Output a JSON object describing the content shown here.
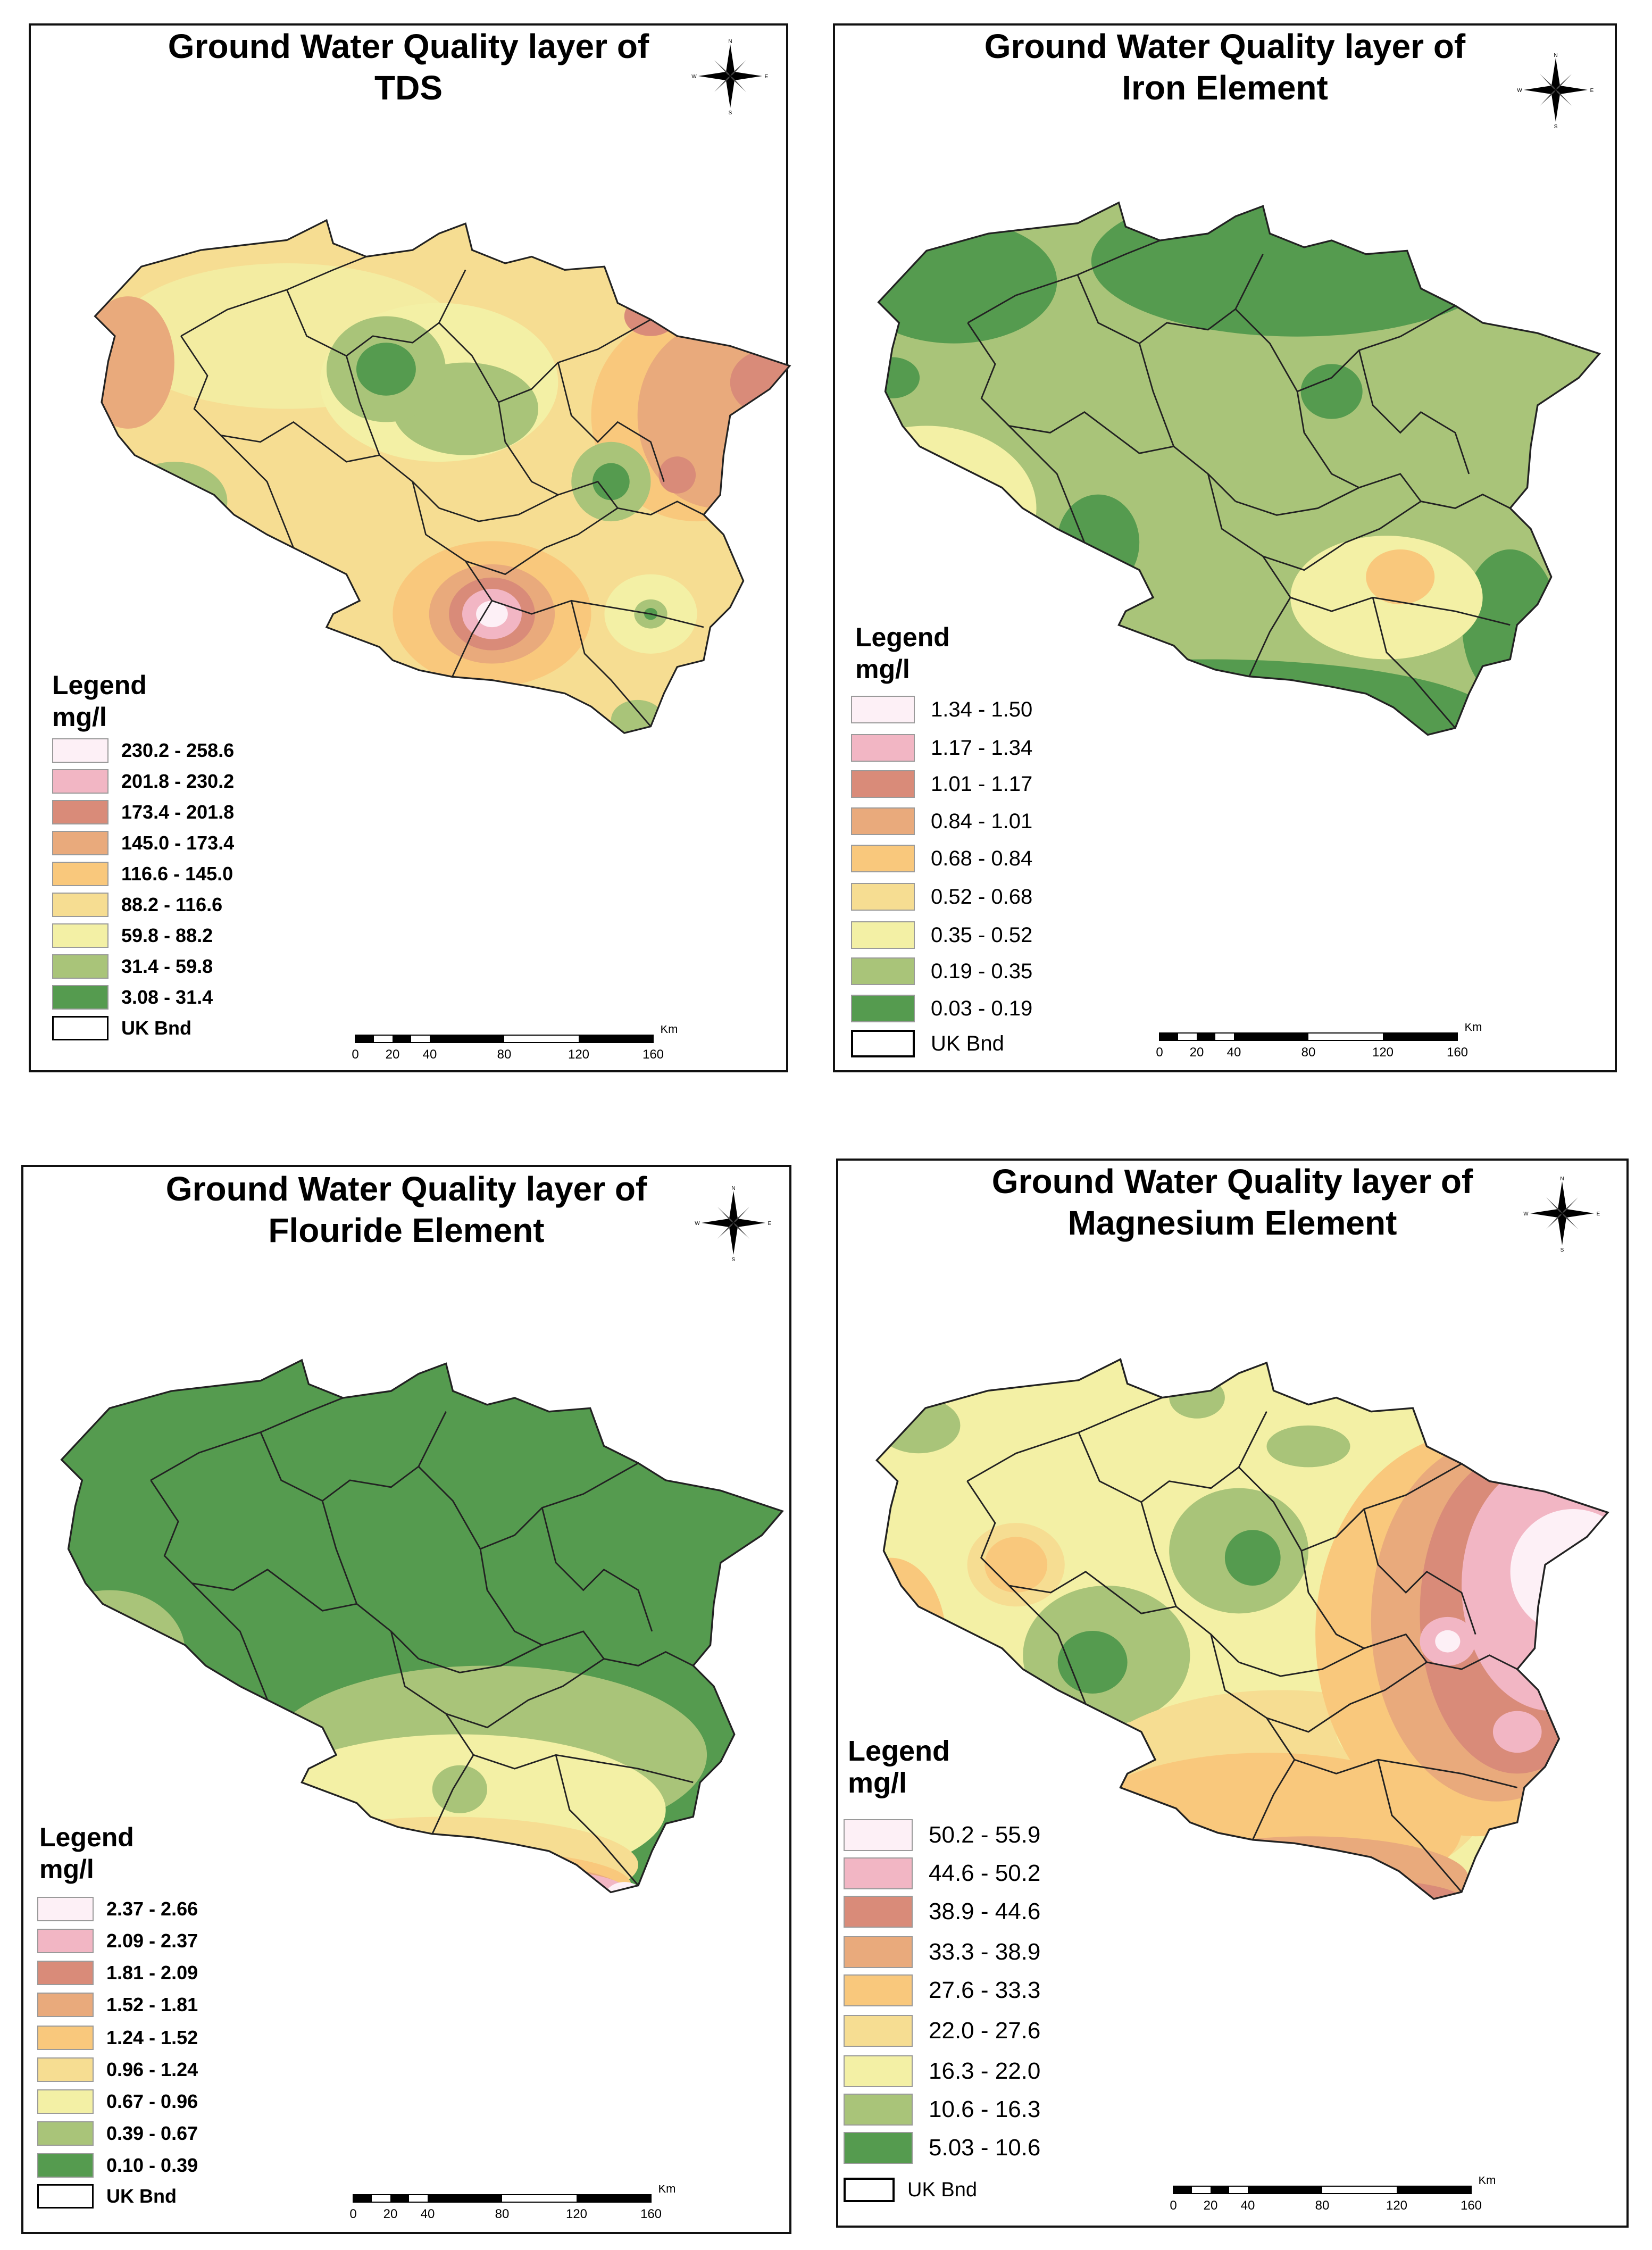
{
  "panels": [
    {
      "title_line1": "Ground Water Quality layer of",
      "title_line2": "TDS",
      "legend_title": "Legend",
      "legend_unit": "mg/l",
      "items": [
        {
          "range": "230.2 - 258.6",
          "color": "#fdf0f6"
        },
        {
          "range": "201.8 - 230.2",
          "color": "#f2b6c4"
        },
        {
          "range": "173.4 - 201.8",
          "color": "#d98b79"
        },
        {
          "range": "145.0 - 173.4",
          "color": "#e9aa7c"
        },
        {
          "range": "116.6 - 145.0",
          "color": "#f9c87c"
        },
        {
          "range": "88.2 - 116.6",
          "color": "#f6dd92"
        },
        {
          "range": "59.8 - 88.2",
          "color": "#f3f0a5"
        },
        {
          "range": "31.4 - 59.8",
          "color": "#a9c479"
        },
        {
          "range": "3.08 - 31.4",
          "color": "#559b4f"
        }
      ],
      "boundary_label": "UK Bnd"
    },
    {
      "title_line1": "Ground Water Quality layer of",
      "title_line2": "Iron Element",
      "legend_title": "Legend",
      "legend_unit": "mg/l",
      "items": [
        {
          "range": "1.34 - 1.50",
          "color": "#fdf0f6"
        },
        {
          "range": "1.17 - 1.34",
          "color": "#f2b6c4"
        },
        {
          "range": "1.01 - 1.17",
          "color": "#d98b79"
        },
        {
          "range": "0.84 - 1.01",
          "color": "#e9aa7c"
        },
        {
          "range": "0.68 - 0.84",
          "color": "#f9c87c"
        },
        {
          "range": "0.52 - 0.68",
          "color": "#f6dd92"
        },
        {
          "range": "0.35 - 0.52",
          "color": "#f3f0a5"
        },
        {
          "range": "0.19 - 0.35",
          "color": "#a9c479"
        },
        {
          "range": "0.03 - 0.19",
          "color": "#559b4f"
        }
      ],
      "boundary_label": "UK Bnd"
    },
    {
      "title_line1": "Ground Water Quality layer of",
      "title_line2": "Flouride Element",
      "legend_title": "Legend",
      "legend_unit": "mg/l",
      "items": [
        {
          "range": "2.37 - 2.66",
          "color": "#fdf0f6"
        },
        {
          "range": "2.09 - 2.37",
          "color": "#f2b6c4"
        },
        {
          "range": "1.81 - 2.09",
          "color": "#d98b79"
        },
        {
          "range": "1.52 - 1.81",
          "color": "#e9aa7c"
        },
        {
          "range": "1.24 - 1.52",
          "color": "#f9c87c"
        },
        {
          "range": "0.96  - 1.24",
          "color": "#f6dd92"
        },
        {
          "range": "0.67 - 0.96",
          "color": "#f3f0a5"
        },
        {
          "range": "0.39 - 0.67",
          "color": "#a9c479"
        },
        {
          "range": "0.10 - 0.39",
          "color": "#559b4f"
        }
      ],
      "boundary_label": "UK Bnd"
    },
    {
      "title_line1": "Ground Water Quality layer of",
      "title_line2": "Magnesium Element",
      "legend_title": "Legend",
      "legend_unit": "mg/l",
      "items": [
        {
          "range": "50.2 - 55.9",
          "color": "#fdf0f6"
        },
        {
          "range": "44.6 - 50.2",
          "color": "#f2b6c4"
        },
        {
          "range": "38.9 - 44.6",
          "color": "#d98b79"
        },
        {
          "range": "33.3 - 38.9",
          "color": "#e9aa7c"
        },
        {
          "range": "27.6 - 33.3",
          "color": "#f9c87c"
        },
        {
          "range": "22.0 - 27.6",
          "color": "#f6dd92"
        },
        {
          "range": "16.3 - 22.0",
          "color": "#f3f0a5"
        },
        {
          "range": "10.6 - 16.3",
          "color": "#a9c479"
        },
        {
          "range": "5.03 - 10.6",
          "color": "#559b4f"
        }
      ],
      "boundary_label": "UK Bnd"
    }
  ],
  "compass": {
    "n": "N",
    "s": "S",
    "e": "E",
    "w": "W"
  },
  "scale": {
    "unit": "Km",
    "ticks": [
      "0",
      "20",
      "40",
      "80",
      "120",
      "160"
    ]
  }
}
